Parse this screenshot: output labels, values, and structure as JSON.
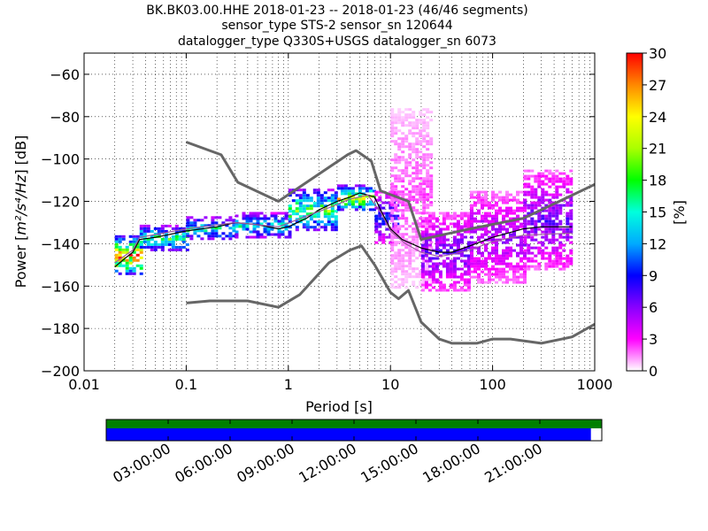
{
  "title_lines": [
    "BK.BK03.00.HHE   2018-01-23 -- 2018-01-23  (46/46 segments)",
    "sensor_type STS-2 sensor_sn 120644",
    "datalogger_type Q330S+USGS datalogger_sn 6073"
  ],
  "chart_data": [
    {
      "type": "heatmap",
      "description_kind": "probabilistic power spectral density",
      "xlabel": "Period [s]",
      "ylabel_parts": {
        "prefix": "Power [",
        "units_math": "m²/s⁴/Hz",
        "suffix": "] [dB]"
      },
      "xscale": "log",
      "xlim": [
        0.01,
        1000
      ],
      "ylim": [
        -200,
        -50
      ],
      "grid": true,
      "x_ticks": [
        {
          "value": 0.01,
          "label": "0.01"
        },
        {
          "value": 0.1,
          "label": "0.1"
        },
        {
          "value": 1,
          "label": "1"
        },
        {
          "value": 10,
          "label": "10"
        },
        {
          "value": 100,
          "label": "100"
        },
        {
          "value": 1000,
          "label": "1000"
        }
      ],
      "y_ticks": [
        {
          "value": -60,
          "label": "−60"
        },
        {
          "value": -80,
          "label": "−80"
        },
        {
          "value": -100,
          "label": "−100"
        },
        {
          "value": -120,
          "label": "−120"
        },
        {
          "value": -140,
          "label": "−140"
        },
        {
          "value": -160,
          "label": "−160"
        },
        {
          "value": -180,
          "label": "−180"
        },
        {
          "value": -200,
          "label": "−200"
        }
      ],
      "colorbar": {
        "label": "[%]",
        "range": [
          0,
          30
        ],
        "colormap": [
          "#ffffff",
          "#ff00ff",
          "#8800ff",
          "#0000ff",
          "#00aaff",
          "#00ffdd",
          "#00ff00",
          "#aaff00",
          "#ffff00",
          "#ff8800",
          "#ff0000"
        ],
        "ticks": [
          {
            "value": 0,
            "label": "0"
          },
          {
            "value": 3,
            "label": "3"
          },
          {
            "value": 6,
            "label": "6"
          },
          {
            "value": 9,
            "label": "9"
          },
          {
            "value": 12,
            "label": "12"
          },
          {
            "value": 15,
            "label": "15"
          },
          {
            "value": 18,
            "label": "18"
          },
          {
            "value": 21,
            "label": "21"
          },
          {
            "value": 24,
            "label": "24"
          },
          {
            "value": 27,
            "label": "27"
          },
          {
            "value": 30,
            "label": "30"
          }
        ]
      },
      "series": [
        {
          "kind": "noise_model",
          "color": "#666666",
          "points": [
            [
              0.1,
              -92
            ],
            [
              0.22,
              -98
            ],
            [
              0.32,
              -111
            ],
            [
              0.8,
              -120
            ],
            [
              3.8,
              -98
            ],
            [
              4.6,
              -96
            ],
            [
              6.5,
              -101
            ],
            [
              8,
              -115
            ],
            [
              15,
              -120
            ],
            [
              20,
              -138
            ],
            [
              60,
              -133
            ],
            [
              200,
              -128
            ],
            [
              450,
              -120
            ],
            [
              1000,
              -112
            ]
          ]
        },
        {
          "kind": "noise_model",
          "color": "#666666",
          "points": [
            [
              0.1,
              -168
            ],
            [
              0.17,
              -167
            ],
            [
              0.4,
              -167
            ],
            [
              0.8,
              -170
            ],
            [
              1.3,
              -164
            ],
            [
              2.5,
              -149
            ],
            [
              4,
              -143
            ],
            [
              5.2,
              -141
            ],
            [
              7,
              -150
            ],
            [
              10,
              -163
            ],
            [
              12,
              -166
            ],
            [
              15,
              -162
            ],
            [
              20,
              -177
            ],
            [
              30,
              -185
            ],
            [
              40,
              -187
            ],
            [
              70,
              -187
            ],
            [
              100,
              -185
            ],
            [
              150,
              -185
            ],
            [
              300,
              -187
            ],
            [
              600,
              -184
            ],
            [
              1000,
              -178
            ]
          ]
        },
        {
          "kind": "mode",
          "color": "#000000",
          "points": [
            [
              0.02,
              -151
            ],
            [
              0.025,
              -147
            ],
            [
              0.03,
              -144
            ],
            [
              0.035,
              -138
            ],
            [
              0.05,
              -137
            ],
            [
              0.1,
              -134
            ],
            [
              0.2,
              -132
            ],
            [
              0.3,
              -130
            ],
            [
              0.5,
              -131
            ],
            [
              0.8,
              -133
            ],
            [
              1,
              -132
            ],
            [
              1.5,
              -128
            ],
            [
              2,
              -124
            ],
            [
              3,
              -120
            ],
            [
              4,
              -118
            ],
            [
              5,
              -116
            ],
            [
              6,
              -117
            ],
            [
              7,
              -118
            ],
            [
              8,
              -124
            ],
            [
              10,
              -133
            ],
            [
              13,
              -138
            ],
            [
              20,
              -142
            ],
            [
              30,
              -144
            ],
            [
              40,
              -144
            ],
            [
              60,
              -141
            ],
            [
              100,
              -137
            ],
            [
              200,
              -133
            ],
            [
              300,
              -132
            ],
            [
              600,
              -132
            ]
          ]
        },
        {
          "kind": "mean",
          "color": "#9e5aa0",
          "points": [
            [
              0.02,
              -149
            ],
            [
              0.03,
              -143
            ],
            [
              0.035,
              -137
            ],
            [
              0.06,
              -135
            ],
            [
              0.1,
              -133
            ],
            [
              0.3,
              -130
            ],
            [
              0.8,
              -132
            ],
            [
              1.5,
              -127
            ],
            [
              2.5,
              -123
            ],
            [
              4,
              -119
            ],
            [
              6,
              -117
            ],
            [
              8,
              -125
            ],
            [
              10,
              -134
            ],
            [
              14,
              -140
            ],
            [
              20,
              -144
            ],
            [
              30,
              -146
            ],
            [
              40,
              -145
            ],
            [
              60,
              -143
            ],
            [
              100,
              -139
            ],
            [
              200,
              -136
            ],
            [
              600,
              -135
            ]
          ]
        }
      ],
      "density_bands": [
        {
          "period_range": [
            0.02,
            0.035
          ],
          "power_range": [
            -154,
            -136
          ],
          "level": 24
        },
        {
          "period_range": [
            0.035,
            0.1
          ],
          "power_range": [
            -143,
            -131
          ],
          "level": 16
        },
        {
          "period_range": [
            0.1,
            0.3
          ],
          "power_range": [
            -138,
            -127
          ],
          "level": 14
        },
        {
          "period_range": [
            0.3,
            1
          ],
          "power_range": [
            -137,
            -125
          ],
          "level": 13
        },
        {
          "period_range": [
            1,
            3
          ],
          "power_range": [
            -134,
            -114
          ],
          "level": 17
        },
        {
          "period_range": [
            3,
            7
          ],
          "power_range": [
            -124,
            -112
          ],
          "level": 20
        },
        {
          "period_range": [
            7,
            12
          ],
          "power_range": [
            -140,
            -115
          ],
          "level": 8
        },
        {
          "period_range": [
            10,
            25
          ],
          "power_range": [
            -160,
            -76
          ],
          "level": 2
        },
        {
          "period_range": [
            20,
            60
          ],
          "power_range": [
            -162,
            -125
          ],
          "level": 6
        },
        {
          "period_range": [
            60,
            200
          ],
          "power_range": [
            -158,
            -115
          ],
          "level": 5
        },
        {
          "period_range": [
            200,
            600
          ],
          "power_range": [
            -152,
            -105
          ],
          "level": 6
        }
      ]
    },
    {
      "type": "timeline",
      "tracks": [
        {
          "kind": "available",
          "color": "#008000",
          "range_fraction": [
            0,
            1
          ]
        },
        {
          "kind": "segments",
          "color": "#0000ff",
          "range_fraction": [
            0,
            0.978
          ]
        }
      ],
      "tick_labels": [
        "03:00:00",
        "06:00:00",
        "09:00:00",
        "12:00:00",
        "15:00:00",
        "18:00:00",
        "21:00:00"
      ],
      "tick_fractions": [
        0.125,
        0.25,
        0.375,
        0.5,
        0.625,
        0.75,
        0.875
      ]
    }
  ]
}
